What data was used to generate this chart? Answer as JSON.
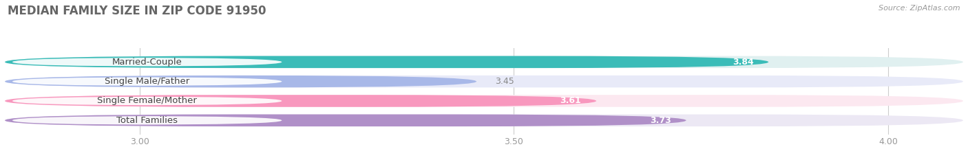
{
  "title": "MEDIAN FAMILY SIZE IN ZIP CODE 91950",
  "source": "Source: ZipAtlas.com",
  "categories": [
    "Married-Couple",
    "Single Male/Father",
    "Single Female/Mother",
    "Total Families"
  ],
  "values": [
    3.84,
    3.45,
    3.61,
    3.73
  ],
  "bar_colors": [
    "#3bbcb8",
    "#a8b8e8",
    "#f898be",
    "#b090c8"
  ],
  "bar_background_colors": [
    "#e0f0f0",
    "#e8eaf8",
    "#fce8f0",
    "#ece8f4"
  ],
  "value_inside": [
    true,
    false,
    true,
    true
  ],
  "xlim": [
    2.82,
    4.1
  ],
  "xticks": [
    3.0,
    3.5,
    4.0
  ],
  "xtick_labels": [
    "3.00",
    "3.50",
    "4.00"
  ],
  "label_fontsize": 9.5,
  "value_fontsize": 9,
  "title_fontsize": 12,
  "bar_height": 0.62,
  "background_color": "#ffffff",
  "grid_color": "#cccccc"
}
